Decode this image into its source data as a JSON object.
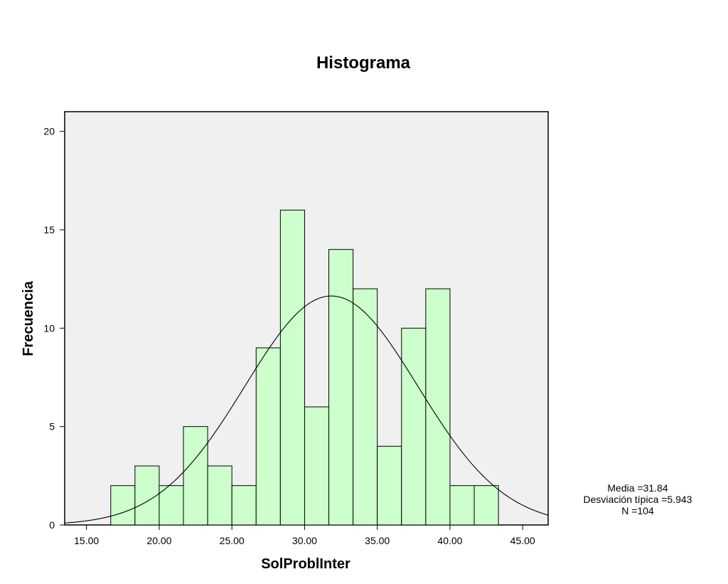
{
  "chart_data": {
    "type": "bar",
    "title": "Histograma",
    "xlabel": "SolProblInter",
    "ylabel": "Frecuencia",
    "xlim": [
      13.5,
      46.75
    ],
    "ylim": [
      0,
      21
    ],
    "x_ticks": [
      "15.00",
      "20.00",
      "25.00",
      "30.00",
      "35.00",
      "40.00",
      "45.00"
    ],
    "x_tick_values": [
      15,
      20,
      25,
      30,
      35,
      40,
      45
    ],
    "y_ticks": [
      "0",
      "5",
      "10",
      "15",
      "20"
    ],
    "y_tick_values": [
      0,
      5,
      10,
      15,
      20
    ],
    "bin_width": 1.6667,
    "bin_edges": [
      16.6667,
      18.3333,
      20.0,
      21.6667,
      23.3333,
      25.0,
      26.6667,
      28.3333,
      30.0,
      31.6667,
      33.3333,
      35.0,
      36.6667,
      38.3333,
      40.0,
      41.6667,
      43.3333
    ],
    "values": [
      2,
      3,
      2,
      5,
      3,
      2,
      9,
      16,
      6,
      14,
      12,
      4,
      10,
      12,
      2,
      2
    ],
    "bar_color": "#ccffcc",
    "plot_background": "#f0f0f0",
    "normal_curve": {
      "mean": 31.84,
      "sd": 5.943,
      "n": 104
    },
    "grid": false,
    "stats": {
      "mean_text": "Media =31.84",
      "sd_text": "Desviación típica =5.943",
      "n_text": "N =104"
    }
  }
}
